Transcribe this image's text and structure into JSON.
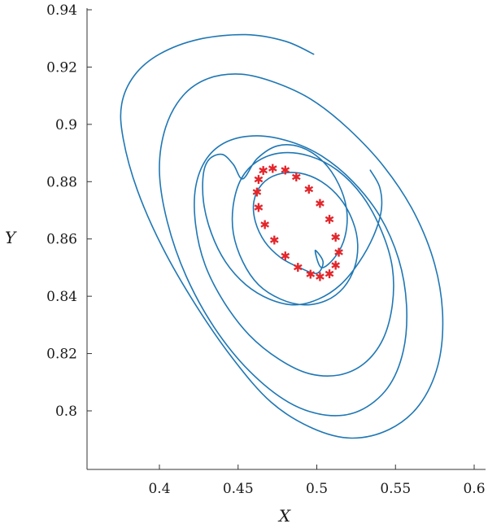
{
  "chart_data": {
    "type": "line",
    "title": "",
    "xlabel": "X",
    "ylabel": "Y",
    "xlim": [
      0.36,
      0.61
    ],
    "ylim": [
      0.785,
      0.94
    ],
    "x_ticks": [
      0.4,
      0.45,
      0.5,
      0.55,
      0.6
    ],
    "y_ticks": [
      0.8,
      0.82,
      0.84,
      0.86,
      0.88,
      0.9,
      0.92,
      0.94
    ],
    "x_tick_labels": [
      "0.4",
      "0.45",
      "0.5",
      "0.55",
      "0.6"
    ],
    "y_tick_labels": [
      "0.8",
      "0.82",
      "0.84",
      "0.86",
      "0.88",
      "0.9",
      "0.92",
      "0.94"
    ],
    "grid": false,
    "legend": "none",
    "colors": {
      "trajectory": "#1f77b4",
      "markers": "#e3262b"
    },
    "series": [
      {
        "kind": "line",
        "points": [
          [
            0.498,
            0.9245
          ],
          [
            0.48,
            0.929
          ],
          [
            0.455,
            0.9313
          ],
          [
            0.425,
            0.9297
          ],
          [
            0.4,
            0.9245
          ],
          [
            0.384,
            0.917
          ],
          [
            0.376,
            0.907
          ],
          [
            0.377,
            0.895
          ],
          [
            0.386,
            0.877
          ],
          [
            0.402,
            0.857
          ],
          [
            0.423,
            0.837
          ],
          [
            0.447,
            0.818
          ],
          [
            0.471,
            0.803
          ],
          [
            0.497,
            0.794
          ],
          [
            0.522,
            0.7905
          ],
          [
            0.546,
            0.7935
          ],
          [
            0.565,
            0.802
          ],
          [
            0.577,
            0.816
          ],
          [
            0.58,
            0.833
          ],
          [
            0.575,
            0.851
          ],
          [
            0.562,
            0.869
          ],
          [
            0.543,
            0.885
          ],
          [
            0.52,
            0.8985
          ],
          [
            0.497,
            0.9085
          ],
          [
            0.474,
            0.9145
          ],
          [
            0.452,
            0.9175
          ],
          [
            0.431,
            0.916
          ],
          [
            0.415,
            0.91
          ],
          [
            0.404,
            0.899
          ],
          [
            0.4,
            0.884
          ],
          [
            0.405,
            0.866
          ],
          [
            0.417,
            0.847
          ],
          [
            0.435,
            0.829
          ],
          [
            0.457,
            0.814
          ],
          [
            0.482,
            0.803
          ],
          [
            0.506,
            0.7985
          ],
          [
            0.527,
            0.8
          ],
          [
            0.545,
            0.808
          ],
          [
            0.555,
            0.821
          ],
          [
            0.557,
            0.837
          ],
          [
            0.552,
            0.853
          ],
          [
            0.54,
            0.868
          ],
          [
            0.523,
            0.88
          ],
          [
            0.503,
            0.889
          ],
          [
            0.483,
            0.894
          ],
          [
            0.462,
            0.896
          ],
          [
            0.443,
            0.894
          ],
          [
            0.43,
            0.888
          ],
          [
            0.423,
            0.878
          ],
          [
            0.423,
            0.865
          ],
          [
            0.429,
            0.851
          ],
          [
            0.441,
            0.838
          ],
          [
            0.457,
            0.8265
          ],
          [
            0.476,
            0.818
          ],
          [
            0.495,
            0.813
          ],
          [
            0.514,
            0.8125
          ],
          [
            0.53,
            0.8165
          ],
          [
            0.542,
            0.825
          ],
          [
            0.548,
            0.837
          ],
          [
            0.548,
            0.85
          ],
          [
            0.541,
            0.863
          ],
          [
            0.529,
            0.875
          ],
          [
            0.513,
            0.884
          ],
          [
            0.495,
            0.889
          ],
          [
            0.477,
            0.89
          ],
          [
            0.462,
            0.887
          ],
          [
            0.452,
            0.881
          ],
          [
            0.447,
            0.872
          ],
          [
            0.447,
            0.862
          ],
          [
            0.453,
            0.852
          ],
          [
            0.463,
            0.844
          ],
          [
            0.477,
            0.839
          ],
          [
            0.492,
            0.837
          ],
          [
            0.506,
            0.8385
          ],
          [
            0.517,
            0.843
          ],
          [
            0.524,
            0.85
          ],
          [
            0.526,
            0.858
          ],
          [
            0.523,
            0.866
          ],
          [
            0.515,
            0.874
          ],
          [
            0.503,
            0.88
          ],
          [
            0.489,
            0.883
          ],
          [
            0.475,
            0.8825
          ],
          [
            0.465,
            0.879
          ],
          [
            0.46,
            0.873
          ],
          [
            0.461,
            0.866
          ],
          [
            0.467,
            0.859
          ],
          [
            0.477,
            0.8535
          ],
          [
            0.489,
            0.85
          ],
          [
            0.5,
            0.848
          ],
          [
            0.504,
            0.852
          ],
          [
            0.499,
            0.856
          ],
          [
            0.503,
            0.85
          ],
          [
            0.512,
            0.854
          ],
          [
            0.518,
            0.861
          ],
          [
            0.519,
            0.87
          ],
          [
            0.514,
            0.879
          ],
          [
            0.504,
            0.887
          ],
          [
            0.49,
            0.892
          ],
          [
            0.475,
            0.8925
          ],
          [
            0.462,
            0.888
          ],
          [
            0.453,
            0.881
          ],
          [
            0.447,
            0.886
          ],
          [
            0.44,
            0.8895
          ],
          [
            0.432,
            0.888
          ],
          [
            0.428,
            0.883
          ],
          [
            0.428,
            0.873
          ],
          [
            0.433,
            0.862
          ],
          [
            0.442,
            0.852
          ],
          [
            0.455,
            0.844
          ],
          [
            0.47,
            0.839
          ],
          [
            0.486,
            0.837
          ],
          [
            0.501,
            0.839
          ],
          [
            0.515,
            0.844
          ],
          [
            0.527,
            0.852
          ],
          [
            0.536,
            0.861
          ],
          [
            0.541,
            0.87
          ],
          [
            0.54,
            0.878
          ],
          [
            0.534,
            0.884
          ]
        ]
      },
      {
        "kind": "scatter",
        "marker": "*",
        "points": [
          [
            0.466,
            0.884
          ],
          [
            0.472,
            0.8848
          ],
          [
            0.48,
            0.8842
          ],
          [
            0.487,
            0.8818
          ],
          [
            0.495,
            0.8775
          ],
          [
            0.502,
            0.8725
          ],
          [
            0.508,
            0.867
          ],
          [
            0.512,
            0.8608
          ],
          [
            0.514,
            0.8555
          ],
          [
            0.512,
            0.851
          ],
          [
            0.508,
            0.848
          ],
          [
            0.502,
            0.847
          ],
          [
            0.496,
            0.8478
          ],
          [
            0.488,
            0.8502
          ],
          [
            0.48,
            0.8543
          ],
          [
            0.473,
            0.8598
          ],
          [
            0.467,
            0.8652
          ],
          [
            0.463,
            0.8712
          ],
          [
            0.462,
            0.8765
          ],
          [
            0.463,
            0.881
          ]
        ]
      }
    ]
  }
}
